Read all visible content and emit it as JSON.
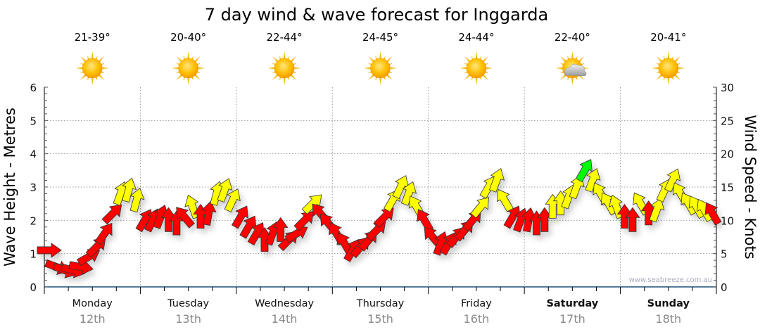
{
  "chart_data": {
    "type": "scatter",
    "title": "7 day wind & wave forecast for Inggarda",
    "ylabel": "Wave Height - Metres",
    "y2label": "Wind Speed - Knots",
    "ylim": [
      0,
      6
    ],
    "y2lim": [
      0,
      30
    ],
    "yticks": [
      "0",
      "1",
      "2",
      "3",
      "4",
      "5",
      "6"
    ],
    "y2ticks": [
      "0",
      "5",
      "10",
      "15",
      "20",
      "25",
      "30"
    ],
    "grid": true,
    "watermark": "www.seabreeze.com.au",
    "days": [
      {
        "name": "Monday",
        "date": "12th",
        "temp": "21-39°",
        "icon": "sunny",
        "bold": false
      },
      {
        "name": "Tuesday",
        "date": "13th",
        "temp": "20-40°",
        "icon": "sunny",
        "bold": false
      },
      {
        "name": "Wednesday",
        "date": "14th",
        "temp": "22-44°",
        "icon": "sunny",
        "bold": false
      },
      {
        "name": "Thursday",
        "date": "15th",
        "temp": "24-45°",
        "icon": "sunny",
        "bold": false
      },
      {
        "name": "Friday",
        "date": "16th",
        "temp": "24-44°",
        "icon": "sunny",
        "bold": false
      },
      {
        "name": "Saturday",
        "date": "17th",
        "temp": "22-40°",
        "icon": "partly-cloudy",
        "bold": true
      },
      {
        "name": "Sunday",
        "date": "18th",
        "temp": "20-41°",
        "icon": "sunny",
        "bold": true
      }
    ],
    "wind_colors": {
      "low": "#ff0000",
      "mid": "#ffff00",
      "high": "#00ff00",
      "mid_from_knots": 11.5,
      "high_from_knots": 17
    },
    "wind_series": {
      "hours": [
        0,
        2,
        4,
        6,
        8,
        10,
        12,
        14,
        16,
        18,
        20,
        22,
        24,
        26,
        28,
        30,
        32,
        34,
        36,
        38,
        40,
        42,
        44,
        46,
        48,
        50,
        52,
        54,
        56,
        58,
        60,
        62,
        64,
        66,
        68,
        70,
        72,
        74,
        76,
        78,
        80,
        82,
        84,
        86,
        88,
        90,
        92,
        94,
        96,
        98,
        100,
        102,
        104,
        106,
        108,
        110,
        112,
        114,
        116,
        118,
        120,
        122,
        124,
        126,
        128,
        130,
        132,
        134,
        136,
        138,
        140,
        142,
        144,
        146,
        148,
        150,
        152,
        154,
        156,
        158,
        160,
        162,
        164,
        166
      ],
      "knots": [
        5.5,
        3,
        2.5,
        2.5,
        3,
        4.5,
        6,
        8,
        11,
        14,
        14.5,
        13,
        10,
        10,
        10.5,
        10,
        9.5,
        10.5,
        12,
        10.5,
        11,
        14,
        14.5,
        13,
        10.5,
        9,
        8,
        7,
        8,
        8.5,
        7,
        8,
        10,
        12.5,
        11,
        9.5,
        8,
        6.5,
        5.5,
        6,
        7,
        8.5,
        10.5,
        13,
        15,
        14,
        12,
        10,
        7.5,
        6.5,
        6.5,
        7.5,
        8.5,
        10,
        12,
        15,
        16,
        13,
        10.5,
        10,
        10,
        9.5,
        10,
        12,
        12.5,
        13.5,
        15,
        17.5,
        16,
        14,
        12.5,
        12,
        10.5,
        10,
        12.5,
        11,
        11.5,
        14.5,
        16,
        14,
        12.5,
        12,
        11.5,
        11
      ],
      "direction_deg": [
        90,
        110,
        110,
        105,
        100,
        60,
        45,
        35,
        45,
        20,
        15,
        15,
        30,
        25,
        20,
        0,
        0,
        320,
        340,
        0,
        10,
        15,
        20,
        25,
        30,
        30,
        30,
        0,
        20,
        0,
        45,
        60,
        45,
        45,
        320,
        320,
        330,
        330,
        30,
        40,
        40,
        45,
        45,
        30,
        25,
        20,
        330,
        330,
        320,
        20,
        30,
        40,
        40,
        40,
        40,
        30,
        20,
        330,
        30,
        20,
        10,
        0,
        0,
        0,
        0,
        20,
        20,
        30,
        20,
        330,
        330,
        340,
        0,
        0,
        330,
        0,
        20,
        25,
        25,
        330,
        330,
        330,
        330,
        330
      ]
    }
  }
}
